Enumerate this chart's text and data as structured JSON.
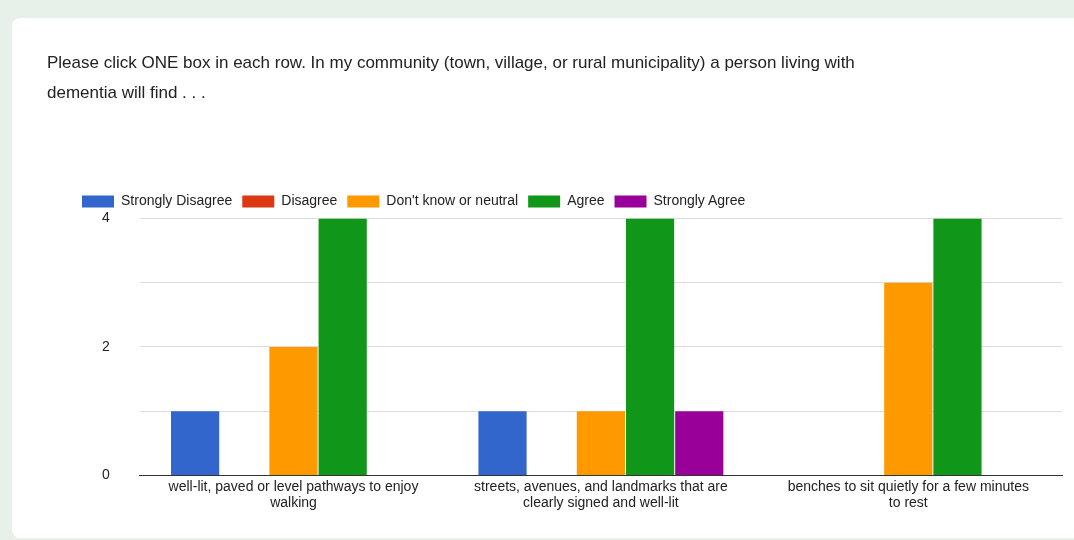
{
  "chart_data": {
    "type": "bar",
    "title": "Please click ONE box in each row. In my community (town, village, or rural municipality) a person living with dementia will find . . .",
    "categories": [
      "well-lit, paved or level pathways to enjoy walking",
      "streets, avenues, and landmarks that are clearly signed and well-lit",
      "benches to sit quietly for a few minutes to rest"
    ],
    "series": [
      {
        "name": "Strongly Disagree",
        "color": "#3366cc",
        "values": [
          1,
          1,
          0
        ]
      },
      {
        "name": "Disagree",
        "color": "#dc3912",
        "values": [
          0,
          0,
          0
        ]
      },
      {
        "name": "Don't know or neutral",
        "color": "#ff9900",
        "values": [
          2,
          1,
          3
        ]
      },
      {
        "name": "Agree",
        "color": "#109618",
        "values": [
          4,
          4,
          4
        ]
      },
      {
        "name": "Strongly Agree",
        "color": "#990099",
        "values": [
          0,
          1,
          0
        ]
      }
    ],
    "ylim": [
      0,
      4
    ],
    "yticks": [
      0,
      {
        "value": 1,
        "label": null
      },
      2,
      {
        "value": 3,
        "label": null
      },
      4
    ],
    "grid": "y",
    "legend": "top left"
  }
}
